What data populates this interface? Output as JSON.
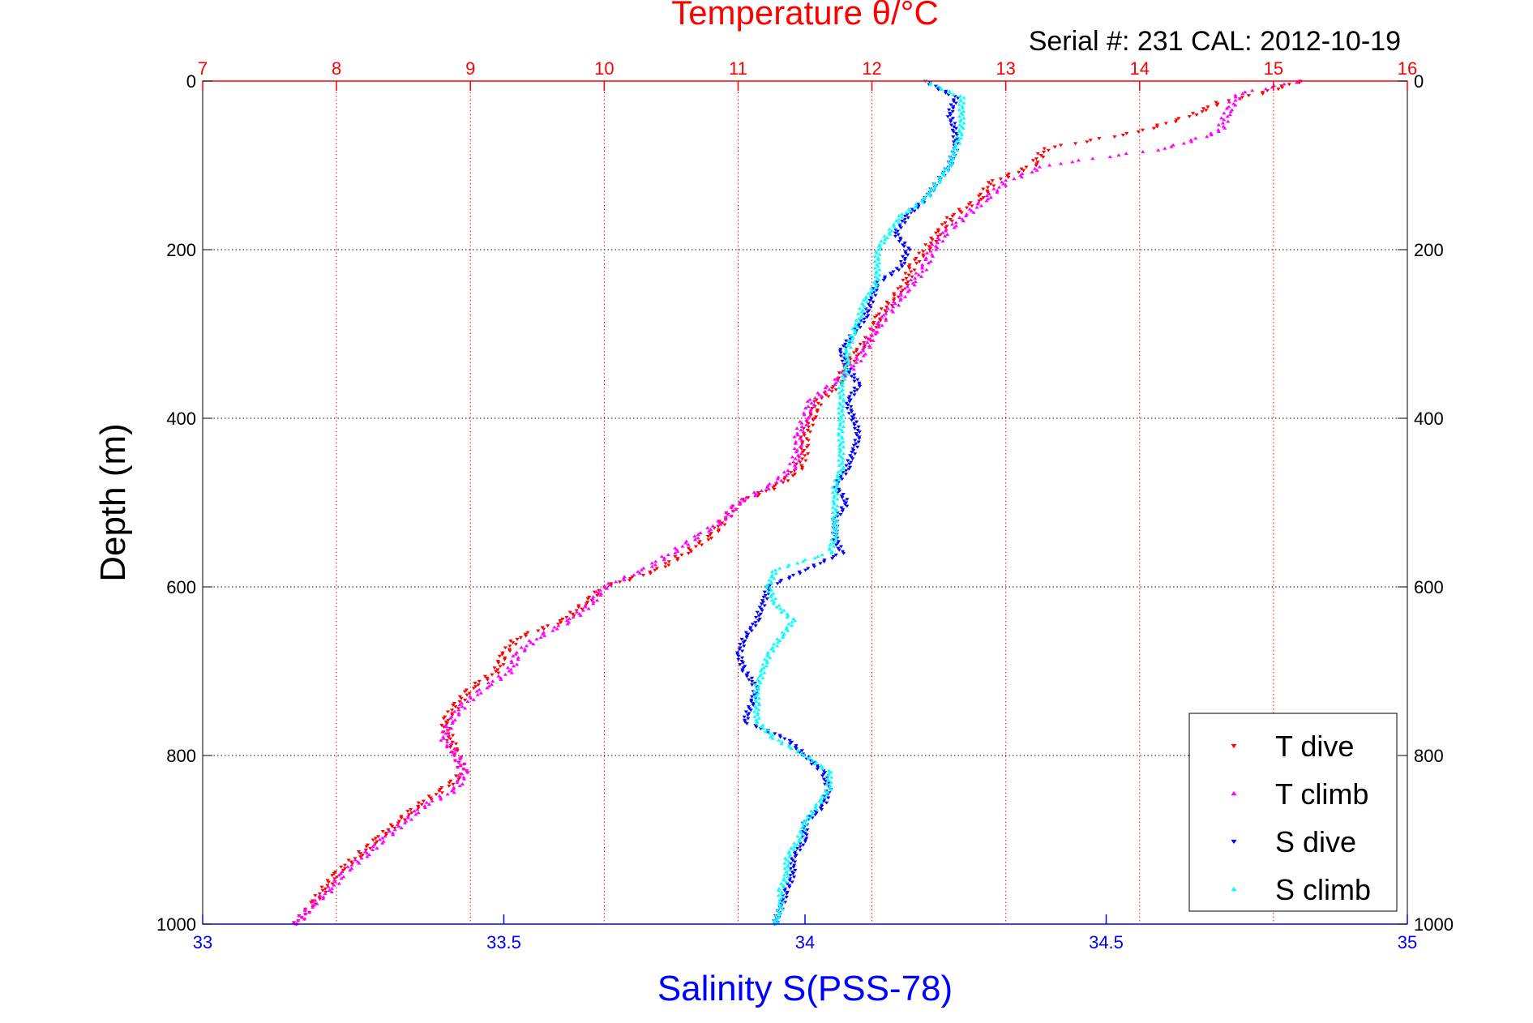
{
  "chart_data": {
    "type": "scatter",
    "title": "Temperature θ/°C",
    "subtitle": "Serial #: 231  CAL: 2012-10-19",
    "xlabel": "Salinity S(PSS-78)",
    "ylabel": "Depth (m)",
    "x_top_label": "Temperature θ/°C",
    "x_top_range": [
      7,
      16
    ],
    "x_top_ticks": [
      "7",
      "8",
      "9",
      "10",
      "11",
      "12",
      "13",
      "14",
      "15",
      "16"
    ],
    "x_bottom_range": [
      33,
      35
    ],
    "x_bottom_ticks": [
      "33",
      "33.5",
      "34",
      "34.5",
      "35"
    ],
    "ylim": [
      0,
      1000
    ],
    "y_reversed": true,
    "y_ticks": [
      "0",
      "200",
      "400",
      "600",
      "800",
      "1000"
    ],
    "grid": true,
    "legend_position": "bottom-right",
    "colors": {
      "temperature_axis": "#ff0000",
      "salinity_axis": "#0000ff",
      "t_dive": "#ff0000",
      "t_climb": "#ff00ff",
      "s_dive": "#0000ff",
      "s_climb": "#00ffff"
    },
    "series": [
      {
        "name": "T dive",
        "axis": "temperature",
        "marker": "triangle-down",
        "depth": [
          0,
          15,
          25,
          40,
          60,
          80,
          100,
          120,
          140,
          160,
          180,
          200,
          220,
          240,
          260,
          280,
          300,
          320,
          340,
          360,
          380,
          400,
          420,
          440,
          460,
          480,
          500,
          520,
          540,
          560,
          580,
          600,
          620,
          640,
          660,
          680,
          700,
          720,
          740,
          760,
          780,
          800,
          820,
          840,
          860,
          880,
          900,
          920,
          940,
          960,
          980,
          1000
        ],
        "values": [
          15.2,
          14.9,
          14.6,
          14.4,
          14.0,
          13.3,
          13.2,
          12.9,
          12.8,
          12.6,
          12.5,
          12.4,
          12.3,
          12.25,
          12.15,
          12.05,
          12.0,
          11.9,
          11.8,
          11.75,
          11.6,
          11.55,
          11.5,
          11.5,
          11.45,
          11.3,
          11.0,
          10.9,
          10.8,
          10.6,
          10.4,
          10.0,
          9.85,
          9.7,
          9.35,
          9.25,
          9.2,
          9.0,
          8.9,
          8.8,
          8.85,
          8.9,
          8.95,
          8.8,
          8.6,
          8.45,
          8.3,
          8.15,
          8.0,
          7.9,
          7.8,
          7.7
        ]
      },
      {
        "name": "T climb",
        "axis": "temperature",
        "marker": "triangle-up",
        "depth": [
          0,
          15,
          25,
          40,
          60,
          80,
          100,
          120,
          140,
          160,
          180,
          200,
          220,
          240,
          260,
          280,
          300,
          320,
          340,
          360,
          380,
          400,
          420,
          440,
          460,
          480,
          500,
          520,
          540,
          560,
          580,
          600,
          620,
          640,
          660,
          680,
          700,
          720,
          740,
          760,
          780,
          800,
          820,
          840,
          860,
          880,
          900,
          920,
          940,
          960,
          980,
          1000
        ],
        "values": [
          15.2,
          14.75,
          14.7,
          14.65,
          14.6,
          14.2,
          13.3,
          13.0,
          12.85,
          12.7,
          12.55,
          12.45,
          12.4,
          12.3,
          12.2,
          12.1,
          12.0,
          11.95,
          11.85,
          11.7,
          11.55,
          11.5,
          11.45,
          11.45,
          11.4,
          11.25,
          11.0,
          10.9,
          10.7,
          10.5,
          10.3,
          10.0,
          9.9,
          9.75,
          9.5,
          9.35,
          9.3,
          9.1,
          8.95,
          8.85,
          8.8,
          8.9,
          8.95,
          8.9,
          8.65,
          8.5,
          8.35,
          8.2,
          8.05,
          7.95,
          7.8,
          7.7
        ]
      },
      {
        "name": "S dive",
        "axis": "salinity",
        "marker": "triangle-down",
        "depth": [
          0,
          20,
          40,
          60,
          80,
          100,
          120,
          140,
          160,
          180,
          200,
          220,
          240,
          260,
          280,
          300,
          320,
          340,
          360,
          380,
          400,
          420,
          440,
          460,
          480,
          500,
          520,
          540,
          560,
          580,
          600,
          620,
          640,
          660,
          680,
          700,
          720,
          740,
          760,
          780,
          800,
          820,
          840,
          860,
          880,
          900,
          920,
          940,
          960,
          980,
          1000
        ],
        "values": [
          34.2,
          34.25,
          34.24,
          34.25,
          34.25,
          34.24,
          34.22,
          34.2,
          34.17,
          34.15,
          34.17,
          34.16,
          34.12,
          34.11,
          34.1,
          34.08,
          34.06,
          34.07,
          34.09,
          34.07,
          34.08,
          34.09,
          34.08,
          34.07,
          34.05,
          34.07,
          34.05,
          34.05,
          34.06,
          34.0,
          33.94,
          33.93,
          33.92,
          33.9,
          33.89,
          33.9,
          33.92,
          33.91,
          33.9,
          33.97,
          34.0,
          34.03,
          34.04,
          34.03,
          34.0,
          34.0,
          33.98,
          33.98,
          33.97,
          33.96,
          33.95
        ]
      },
      {
        "name": "S climb",
        "axis": "salinity",
        "marker": "triangle-up",
        "depth": [
          0,
          20,
          40,
          60,
          80,
          100,
          120,
          140,
          160,
          180,
          200,
          220,
          240,
          260,
          280,
          300,
          320,
          340,
          360,
          380,
          400,
          420,
          440,
          460,
          480,
          500,
          520,
          540,
          560,
          580,
          600,
          620,
          640,
          660,
          680,
          700,
          720,
          740,
          760,
          780,
          800,
          820,
          840,
          860,
          880,
          900,
          920,
          940,
          960,
          980,
          1000
        ],
        "values": [
          34.2,
          34.26,
          34.26,
          34.26,
          34.25,
          34.24,
          34.22,
          34.2,
          34.16,
          34.14,
          34.12,
          34.12,
          34.12,
          34.1,
          34.09,
          34.08,
          34.07,
          34.07,
          34.06,
          34.06,
          34.06,
          34.06,
          34.06,
          34.06,
          34.05,
          34.05,
          34.05,
          34.05,
          34.04,
          33.95,
          33.94,
          33.95,
          33.98,
          33.96,
          33.94,
          33.93,
          33.92,
          33.92,
          33.92,
          33.95,
          34.0,
          34.04,
          34.04,
          34.02,
          34.0,
          33.99,
          33.97,
          33.97,
          33.96,
          33.96,
          33.95
        ]
      }
    ]
  }
}
